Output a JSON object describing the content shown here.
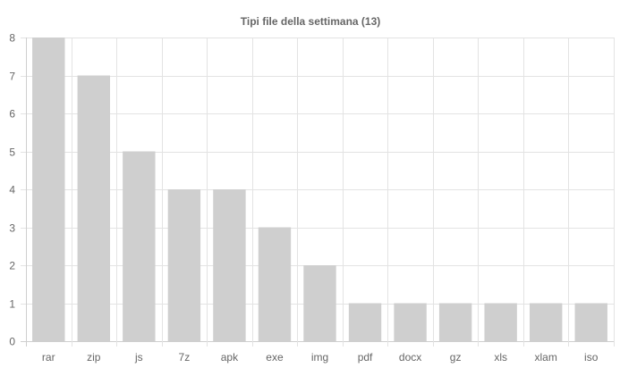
{
  "chart_data": {
    "type": "bar",
    "title": "Tipi file della settimana (13)",
    "xlabel": "",
    "ylabel": "",
    "categories": [
      "rar",
      "zip",
      "js",
      "7z",
      "apk",
      "exe",
      "img",
      "pdf",
      "docx",
      "gz",
      "xls",
      "xlam",
      "iso"
    ],
    "values": [
      8,
      7,
      5,
      4,
      4,
      3,
      2,
      1,
      1,
      1,
      1,
      1,
      1
    ],
    "ylim": [
      0,
      8
    ],
    "y_ticks": [
      "0",
      "1",
      "2",
      "3",
      "4",
      "5",
      "6",
      "7",
      "8"
    ],
    "grid": true,
    "legend": "none",
    "colors": {
      "bar": "#cfcfcf",
      "grid": "#e3e3e3",
      "text": "#666666"
    }
  }
}
